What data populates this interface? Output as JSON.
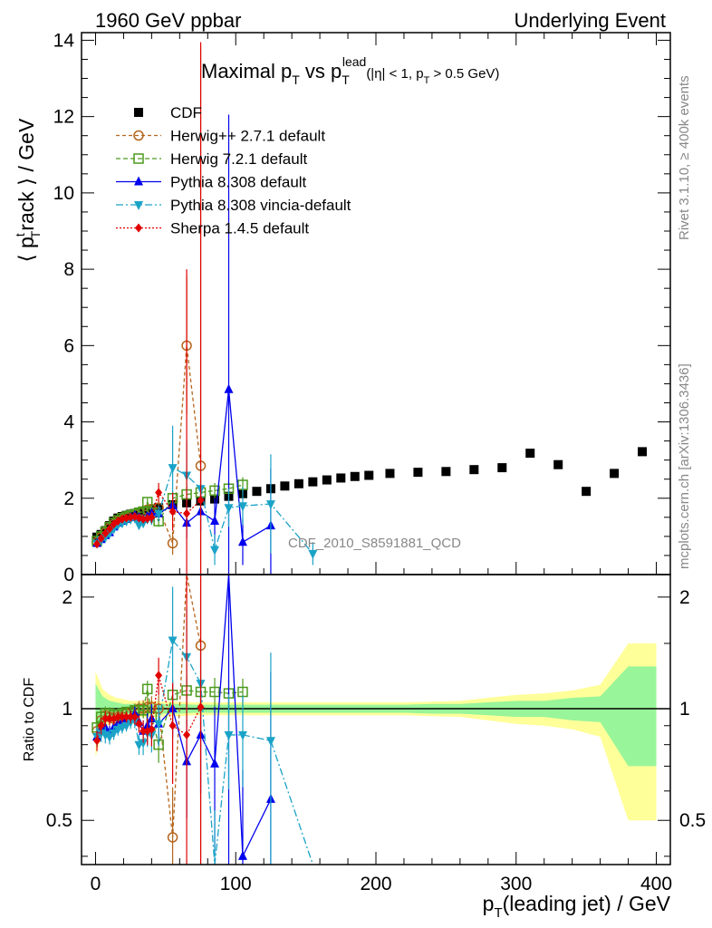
{
  "header": {
    "left": "1960 GeV ppbar",
    "right": "Underlying Event"
  },
  "plot_title": {
    "main": "Maximal p",
    "main_sub": "T",
    "vs": " vs p",
    "vs_sup": "lead",
    "vs_sub": "T",
    "cuts_a": "(|η| < 1, p",
    "cuts_sub": "T",
    "cuts_b": " > 0.5 GeV)"
  },
  "axes": {
    "ylabel_a": "⟨ p",
    "ylabel_sup": "t",
    "ylabel_sub": "T",
    "ylabel_b": "rack ⟩ / GeV",
    "xlabel_a": "p",
    "xlabel_sub": "T",
    "xlabel_b": "(leading jet) / GeV",
    "ratio_ylabel": "Ratio to CDF"
  },
  "side_labels": {
    "rivet": "Rivet 3.1.10, ≥ 400k events",
    "mcplots": "mcplots.cern.ch [arXiv:1306.3436]"
  },
  "watermark": "CDF_2010_S8591881_QCD",
  "legend": [
    {
      "label": "CDF",
      "color": "#000000",
      "marker": "square"
    },
    {
      "label": "Herwig++ 2.7.1 default",
      "color": "#b5651d",
      "marker": "circle-open"
    },
    {
      "label": "Herwig 7.2.1 default",
      "color": "#4c9a1d",
      "marker": "square-open"
    },
    {
      "label": "Pythia 8.308 default",
      "color": "#0000ee",
      "marker": "triangle-up"
    },
    {
      "label": "Pythia 8.308 vincia-default",
      "color": "#1aa3c7",
      "marker": "triangle-down"
    },
    {
      "label": "Sherpa 1.4.5 default",
      "color": "#e00000",
      "marker": "diamond"
    }
  ],
  "chart_data": {
    "type": "scatter",
    "xlim": [
      -10,
      410
    ],
    "main_ylim": [
      0,
      14.2
    ],
    "ratio_ylim": [
      0.38,
      2.3
    ],
    "x_ticks": [
      0,
      100,
      200,
      300,
      400
    ],
    "main_y_ticks": [
      0,
      2,
      4,
      6,
      8,
      10,
      12,
      14
    ],
    "ratio_y_ticks": [
      0.5,
      1,
      2
    ],
    "series": [
      {
        "name": "CDF",
        "x": [
          1,
          4,
          7,
          10,
          13,
          16,
          19,
          22,
          25,
          28,
          31,
          34,
          37,
          40,
          45,
          55,
          65,
          75,
          85,
          95,
          105,
          115,
          125,
          135,
          145,
          155,
          165,
          175,
          185,
          195,
          210,
          230,
          250,
          270,
          290,
          310,
          330,
          350,
          370,
          390
        ],
        "y": [
          0.98,
          1.05,
          1.15,
          1.28,
          1.4,
          1.48,
          1.52,
          1.55,
          1.58,
          1.6,
          1.63,
          1.66,
          1.68,
          1.7,
          1.75,
          1.83,
          1.88,
          1.93,
          1.98,
          2.05,
          2.12,
          2.18,
          2.25,
          2.32,
          2.38,
          2.43,
          2.48,
          2.53,
          2.57,
          2.6,
          2.65,
          2.68,
          2.7,
          2.75,
          2.8,
          3.18,
          2.88,
          2.18,
          2.65,
          3.22
        ],
        "band_x": [
          0,
          5,
          10,
          15,
          20,
          25,
          30,
          35,
          40,
          50,
          60,
          70,
          80,
          90,
          100,
          110,
          120,
          130,
          140,
          150,
          160,
          170,
          180,
          190,
          200,
          220,
          240,
          260,
          280,
          300,
          320,
          340,
          360,
          380,
          400
        ],
        "band_inner": [
          0.17,
          0.08,
          0.05,
          0.04,
          0.03,
          0.03,
          0.03,
          0.03,
          0.03,
          0.03,
          0.03,
          0.025,
          0.025,
          0.025,
          0.025,
          0.025,
          0.025,
          0.025,
          0.025,
          0.025,
          0.025,
          0.025,
          0.025,
          0.025,
          0.025,
          0.025,
          0.03,
          0.03,
          0.04,
          0.05,
          0.05,
          0.07,
          0.08,
          0.3,
          0.3
        ],
        "band_outer": [
          0.26,
          0.13,
          0.09,
          0.07,
          0.06,
          0.05,
          0.05,
          0.05,
          0.05,
          0.045,
          0.045,
          0.04,
          0.04,
          0.04,
          0.04,
          0.04,
          0.04,
          0.04,
          0.04,
          0.04,
          0.04,
          0.04,
          0.04,
          0.04,
          0.04,
          0.04,
          0.045,
          0.05,
          0.07,
          0.09,
          0.1,
          0.12,
          0.16,
          0.5,
          0.5
        ]
      },
      {
        "name": "Herwig++ 2.7.1 default",
        "x": [
          1,
          4,
          7,
          10,
          13,
          16,
          19,
          22,
          25,
          28,
          31,
          34,
          37,
          40,
          45,
          55,
          65,
          75
        ],
        "y": [
          0.85,
          0.98,
          1.1,
          1.22,
          1.32,
          1.4,
          1.45,
          1.5,
          1.55,
          1.58,
          1.63,
          1.66,
          1.7,
          1.72,
          1.75,
          0.82,
          6.0,
          2.85
        ],
        "err": [
          0.05,
          0.05,
          0.05,
          0.05,
          0.05,
          0.05,
          0.05,
          0.05,
          0.06,
          0.07,
          0.08,
          0.09,
          0.1,
          0.12,
          0.15,
          0.3,
          1.8,
          11.0
        ],
        "ratio": [
          0.87,
          0.93,
          0.96,
          0.95,
          0.94,
          0.95,
          0.95,
          0.97,
          0.98,
          0.99,
          1.0,
          1.0,
          1.01,
          1.01,
          1.0,
          0.45,
          3.19,
          1.48
        ]
      },
      {
        "name": "Herwig 7.2.1 default",
        "x": [
          1,
          4,
          7,
          10,
          13,
          16,
          19,
          22,
          25,
          28,
          31,
          34,
          37,
          40,
          45,
          55,
          65,
          75,
          85,
          95,
          105
        ],
        "y": [
          0.88,
          1.0,
          1.12,
          1.24,
          1.35,
          1.42,
          1.48,
          1.52,
          1.55,
          1.58,
          1.62,
          1.65,
          1.9,
          1.62,
          1.4,
          2.0,
          2.1,
          2.15,
          2.2,
          2.25,
          2.35
        ],
        "err": [
          0.05,
          0.05,
          0.05,
          0.05,
          0.05,
          0.05,
          0.05,
          0.05,
          0.05,
          0.06,
          0.07,
          0.08,
          0.1,
          0.12,
          0.15,
          0.2,
          0.2,
          0.2,
          0.2,
          0.2,
          0.2
        ],
        "ratio": [
          0.89,
          0.95,
          0.97,
          0.97,
          0.96,
          0.96,
          0.97,
          0.98,
          0.98,
          0.99,
          0.99,
          0.99,
          1.13,
          0.95,
          0.8,
          1.09,
          1.12,
          1.11,
          1.11,
          1.1,
          1.11
        ]
      },
      {
        "name": "Pythia 8.308 default",
        "x": [
          1,
          4,
          7,
          10,
          13,
          16,
          19,
          22,
          25,
          28,
          31,
          34,
          37,
          40,
          45,
          55,
          65,
          75,
          85,
          95,
          105,
          125
        ],
        "y": [
          0.82,
          0.92,
          1.02,
          1.1,
          1.25,
          1.35,
          1.4,
          1.45,
          1.5,
          1.55,
          1.5,
          1.45,
          1.52,
          1.6,
          1.6,
          1.82,
          1.35,
          1.65,
          1.4,
          4.85,
          0.85,
          1.28
        ],
        "err": [
          0.05,
          0.05,
          0.05,
          0.05,
          0.05,
          0.05,
          0.05,
          0.05,
          0.06,
          0.07,
          0.08,
          0.1,
          0.12,
          0.15,
          0.2,
          0.3,
          0.4,
          0.5,
          0.6,
          7.2,
          0.6,
          1.5
        ],
        "ratio": [
          0.84,
          0.88,
          0.89,
          0.86,
          0.89,
          0.91,
          0.92,
          0.94,
          0.95,
          0.97,
          0.92,
          0.87,
          0.9,
          0.94,
          0.91,
          1.0,
          0.72,
          0.85,
          0.71,
          2.36,
          0.4,
          0.57
        ]
      },
      {
        "name": "Pythia 8.308 vincia-default",
        "x": [
          1,
          4,
          7,
          10,
          13,
          16,
          19,
          22,
          25,
          28,
          31,
          34,
          37,
          40,
          45,
          55,
          65,
          75,
          85,
          95,
          105,
          125,
          155
        ],
        "y": [
          0.82,
          0.9,
          0.98,
          1.08,
          1.2,
          1.3,
          1.35,
          1.4,
          1.45,
          1.48,
          1.3,
          1.35,
          1.45,
          1.45,
          1.6,
          2.8,
          2.6,
          2.25,
          0.65,
          1.75,
          1.8,
          1.85,
          0.55
        ],
        "err": [
          0.05,
          0.05,
          0.05,
          0.05,
          0.05,
          0.05,
          0.05,
          0.05,
          0.06,
          0.07,
          0.08,
          0.1,
          0.12,
          0.15,
          0.2,
          1.1,
          0.9,
          0.6,
          0.4,
          0.5,
          0.5,
          1.3,
          0.3
        ],
        "ratio": [
          0.84,
          0.86,
          0.85,
          0.84,
          0.86,
          0.88,
          0.89,
          0.9,
          0.92,
          0.93,
          0.8,
          0.81,
          0.86,
          0.85,
          0.91,
          1.53,
          1.38,
          1.17,
          0.33,
          0.85,
          0.85,
          0.82,
          0.24
        ]
      },
      {
        "name": "Sherpa 1.4.5 default",
        "x": [
          1,
          4,
          7,
          10,
          13,
          16,
          19,
          22,
          25,
          28,
          31,
          34,
          37,
          40,
          45,
          55,
          65,
          75
        ],
        "y": [
          0.8,
          0.95,
          1.08,
          1.2,
          1.32,
          1.4,
          1.45,
          1.48,
          1.5,
          1.52,
          1.48,
          1.45,
          1.47,
          1.5,
          2.15,
          1.65,
          1.6,
          1.95
        ],
        "err": [
          0.05,
          0.05,
          0.05,
          0.05,
          0.05,
          0.05,
          0.05,
          0.05,
          0.06,
          0.07,
          0.08,
          0.1,
          0.12,
          0.15,
          0.25,
          0.5,
          6.4,
          12.0
        ],
        "ratio": [
          0.82,
          0.9,
          0.94,
          0.94,
          0.94,
          0.95,
          0.95,
          0.95,
          0.95,
          0.95,
          0.91,
          0.87,
          0.87,
          0.88,
          1.23,
          0.9,
          0.85,
          1.01
        ]
      }
    ]
  }
}
